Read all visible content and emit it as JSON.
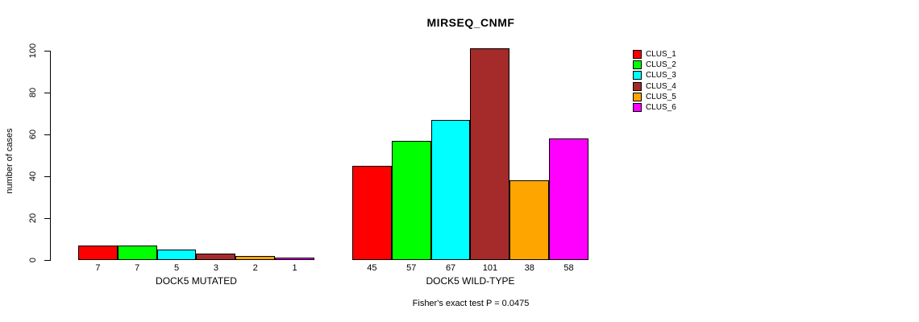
{
  "chart_data": {
    "type": "bar",
    "title": "MIRSEQ_CNMF",
    "ylabel": "number of cases",
    "xlabel": "",
    "ylim": [
      0,
      100
    ],
    "yticks": [
      0,
      20,
      40,
      60,
      80,
      100
    ],
    "grid": false,
    "legend_position": "right-outside",
    "legend": [
      "CLUS_1",
      "CLUS_2",
      "CLUS_3",
      "CLUS_4",
      "CLUS_5",
      "CLUS_6"
    ],
    "colors": [
      "#FF0000",
      "#00FF00",
      "#00FFFF",
      "#A52A2A",
      "#FFA500",
      "#FF00FF"
    ],
    "groups": [
      {
        "label": "DOCK5 MUTATED",
        "values": [
          7,
          7,
          5,
          3,
          2,
          1
        ]
      },
      {
        "label": "DOCK5 WILD-TYPE",
        "values": [
          45,
          57,
          67,
          101,
          38,
          58
        ]
      }
    ],
    "bar_value_labels_shown": true,
    "annotation": "Fisher's exact test P = 0.0475"
  }
}
